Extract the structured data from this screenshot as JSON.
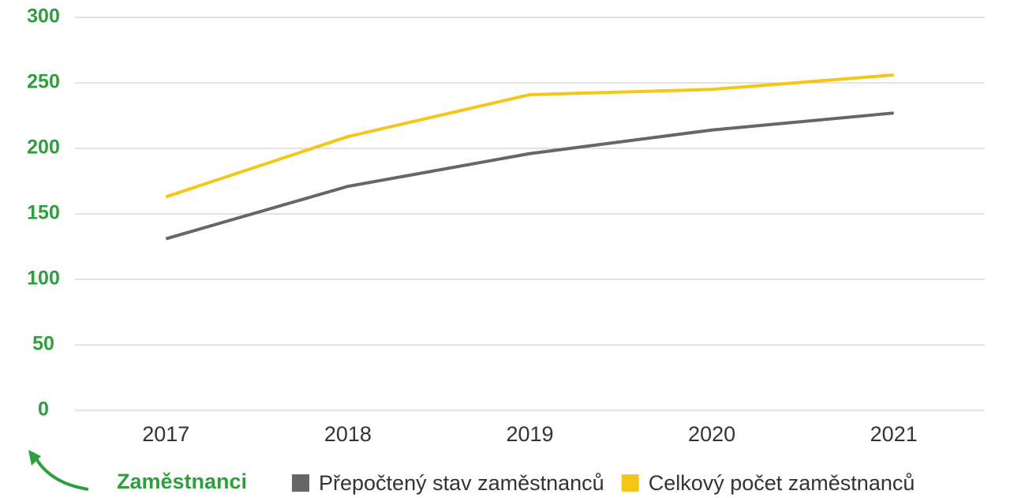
{
  "chart_data": {
    "type": "line",
    "categories": [
      "2017",
      "2018",
      "2019",
      "2020",
      "2021"
    ],
    "series": [
      {
        "name": "Přepočtený stav zaměstnanců",
        "color": "#666666",
        "values": [
          131,
          171,
          196,
          214,
          227
        ]
      },
      {
        "name": "Celkový počet zaměstnanců",
        "color": "#f5c518",
        "values": [
          163,
          209,
          241,
          245,
          256
        ]
      }
    ],
    "legend_title": "Zaměstnanci",
    "ylim": [
      0,
      300
    ],
    "yticks": [
      0,
      50,
      100,
      150,
      200,
      250,
      300
    ],
    "grid": true,
    "legend": "bottom"
  }
}
